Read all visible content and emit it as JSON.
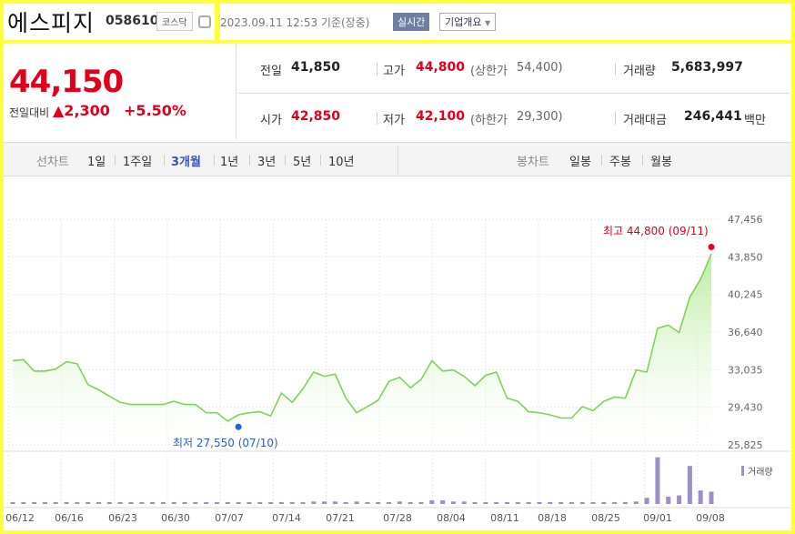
{
  "header": {
    "name": "에스피지",
    "code": "058610",
    "market": "코스닥",
    "timestamp": "2023.09.11 12:53  기준(장중)",
    "realtime": "실시간",
    "company_info": "기업개요"
  },
  "price": {
    "current": "44,150",
    "change_label": "전일대비",
    "change": "▲2,300",
    "change_pct": "+5.50%"
  },
  "stats": {
    "prev_label": "전일",
    "prev": "41,850",
    "high_label": "고가",
    "high": "44,800",
    "upper_label": "(상한가",
    "upper": "54,400)",
    "volume_label": "거래량",
    "volume": "5,683,997",
    "open_label": "시가",
    "open": "42,850",
    "low_label": "저가",
    "low": "42,100",
    "lower_label": "(하한가",
    "lower": "29,300)",
    "amount_label": "거래대금",
    "amount": "246,441",
    "amount_unit": "백만"
  },
  "tabs": {
    "line_label": "선차트",
    "line": [
      "1일",
      "1주일",
      "3개월",
      "1년",
      "3년",
      "5년",
      "10년"
    ],
    "active": "3개월",
    "candle_label": "봉차트",
    "candle": [
      "일봉",
      "주봉",
      "월봉"
    ]
  },
  "colors": {
    "accent": "#e0001b",
    "line": "#7fd35a",
    "low": "#2a62c9",
    "volume": "#9b8fc7"
  },
  "chart_data": {
    "type": "area",
    "y_ticks": [
      "47,456",
      "43,850",
      "40,245",
      "36,640",
      "33,035",
      "29,430",
      "25,825"
    ],
    "ylim": [
      25825,
      47456
    ],
    "x_ticks": [
      "06/12",
      "06/16",
      "06/23",
      "06/30",
      "07/07",
      "07/14",
      "07/21",
      "07/28",
      "08/04",
      "08/11",
      "08/18",
      "08/25",
      "09/01",
      "09/08"
    ],
    "high_annotation": "최고 44,800 (09/11)",
    "low_annotation": "최저 27,550 (07/10)",
    "volume_legend": "거래량",
    "values": [
      33900,
      34000,
      32900,
      32900,
      33100,
      33800,
      33600,
      31600,
      31100,
      30500,
      29900,
      29700,
      29700,
      29700,
      29700,
      30000,
      29700,
      29700,
      28900,
      28900,
      28100,
      28700,
      28900,
      29000,
      28600,
      30800,
      29900,
      31200,
      32800,
      32400,
      32600,
      30300,
      28900,
      29500,
      30100,
      31900,
      32300,
      31300,
      32100,
      33900,
      32900,
      33000,
      32400,
      31500,
      32500,
      32800,
      30300,
      30000,
      29000,
      28900,
      28700,
      28400,
      28400,
      29500,
      29100,
      30000,
      30400,
      30300,
      33000,
      32800,
      37000,
      37300,
      36600,
      40000,
      41700,
      44150
    ],
    "volumes": [
      1,
      1,
      1,
      1,
      1,
      1,
      1,
      1,
      1,
      1,
      1,
      1,
      1,
      1,
      1,
      1,
      1,
      1,
      1,
      1,
      1,
      1,
      1,
      1,
      1,
      1,
      1,
      1,
      2,
      2,
      2,
      1,
      2,
      1,
      1,
      1,
      2,
      1,
      1,
      3,
      3,
      2,
      2,
      1,
      1,
      1,
      1,
      1,
      1,
      1,
      1,
      1,
      1,
      1,
      1,
      1,
      1,
      1,
      2,
      5,
      38,
      6,
      7,
      31,
      11,
      10
    ],
    "high_index": 65,
    "low_index": 21
  }
}
